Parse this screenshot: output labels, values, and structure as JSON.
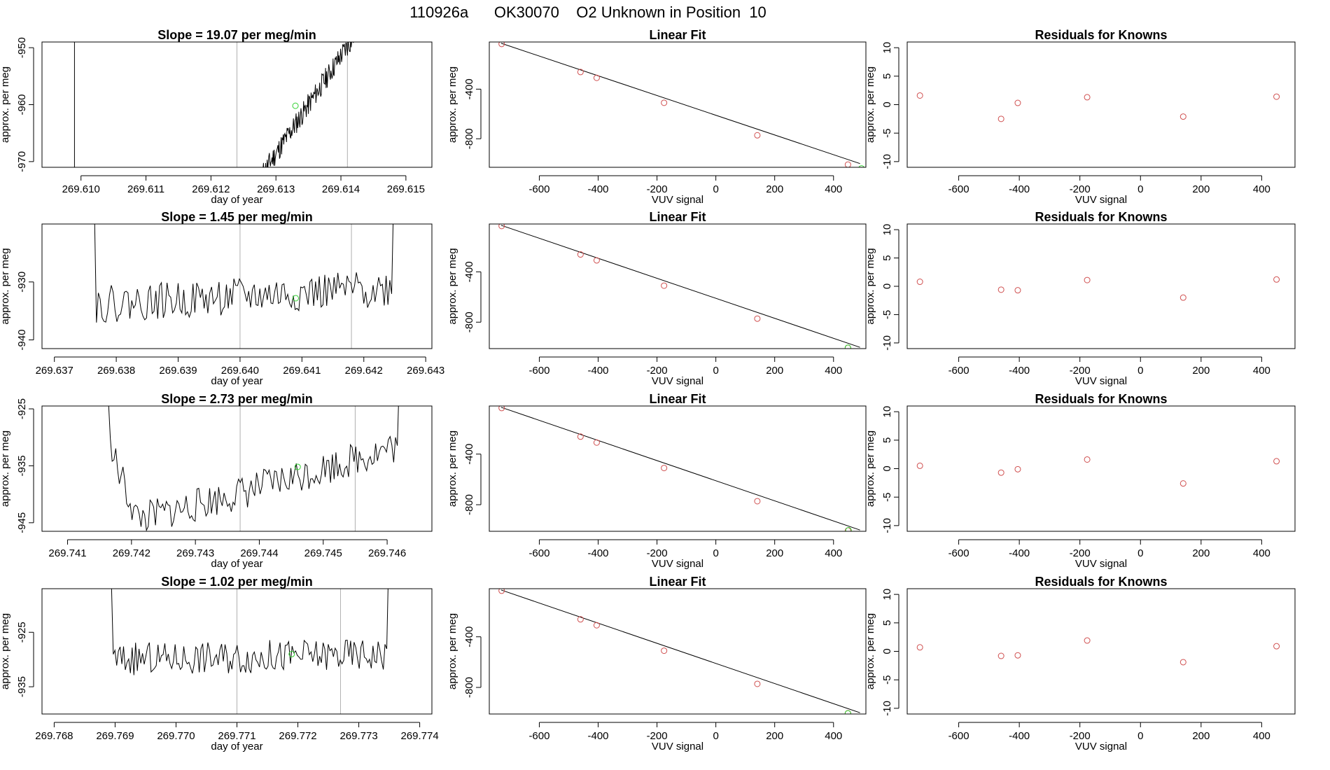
{
  "page_title": "110926a      OK30070    O2 Unknown in Position  10",
  "colors": {
    "known": "#d05050",
    "unknown": "#30d030",
    "trace": "#000000",
    "window": "#b0b0b0",
    "axis": "#000000"
  },
  "chart_data": [
    {
      "type": "line",
      "row": 0,
      "col": 0,
      "title": "Slope =  19.07  per meg/min",
      "xlabel": "day of year",
      "ylabel": "approx. per meg",
      "xlim": [
        269.6094,
        269.6154
      ],
      "ylim": [
        -971,
        -949
      ],
      "xticks": [
        "269.610",
        "269.611",
        "269.612",
        "269.613",
        "269.614",
        "269.615"
      ],
      "yticks": [
        "-950",
        "-960",
        "-970"
      ],
      "window_lines": [
        269.6124,
        269.6141
      ],
      "unknown_point": [
        269.6133,
        -960.2
      ],
      "trace": {
        "seed": 11,
        "x0": 269.6128,
        "x1": 269.6142,
        "y0": -972,
        "y1": -948,
        "mode": "ramp",
        "noise": 2.0
      }
    },
    {
      "type": "scatter",
      "row": 0,
      "col": 1,
      "title": "Linear Fit",
      "xlabel": "VUV signal",
      "ylabel": "approx. per meg",
      "xlim": [
        -770,
        510
      ],
      "ylim": [
        -1030,
        -20
      ],
      "xticks": [
        "-600",
        "-400",
        "-200",
        "0",
        "200",
        "400"
      ],
      "yticks": [
        "-400",
        "-800"
      ],
      "fit_line": [
        [
          -730,
          -30
        ],
        [
          490,
          -1000
        ]
      ],
      "known_points": [
        [
          -728,
          -36
        ],
        [
          -460,
          -262
        ],
        [
          -405,
          -309
        ],
        [
          -176,
          -510
        ],
        [
          141,
          -772
        ],
        [
          449,
          -1008
        ]
      ],
      "unknown_point": [
        495,
        -1039
      ]
    },
    {
      "type": "scatter",
      "row": 0,
      "col": 2,
      "title": "Residuals for Knowns",
      "xlabel": "VUV signal",
      "ylabel": "approx. per meg",
      "xlim": [
        -770,
        510
      ],
      "ylim": [
        -11,
        11
      ],
      "xticks": [
        "-600",
        "-400",
        "-200",
        "0",
        "200",
        "400"
      ],
      "yticks": [
        "10",
        "5",
        "0",
        "-5",
        "-10"
      ],
      "known_points": [
        [
          -728,
          1.6
        ],
        [
          -460,
          -2.5
        ],
        [
          -405,
          0.3
        ],
        [
          -176,
          1.3
        ],
        [
          141,
          -2.1
        ],
        [
          449,
          1.4
        ]
      ]
    },
    {
      "type": "line",
      "row": 1,
      "col": 0,
      "title": "Slope =  1.45  per meg/min",
      "xlabel": "day of year",
      "ylabel": "approx. per meg",
      "xlim": [
        269.6368,
        269.6431
      ],
      "ylim": [
        -941.5,
        -920
      ],
      "xticks": [
        "269.637",
        "269.638",
        "269.639",
        "269.640",
        "269.641",
        "269.642",
        "269.643"
      ],
      "yticks": [
        "-930",
        "-940"
      ],
      "window_lines": [
        269.64,
        269.6418
      ],
      "unknown_point": [
        269.6409,
        -932.8
      ],
      "trace": {
        "seed": 22,
        "x0": 269.6375,
        "x1": 269.6426,
        "y0": -934,
        "y1": -931,
        "mode": "noisy",
        "noise": 3.2,
        "spike": true
      }
    },
    {
      "type": "scatter",
      "row": 1,
      "col": 1,
      "title": "Linear Fit",
      "xlabel": "VUV signal",
      "ylabel": "approx. per meg",
      "xlim": [
        -770,
        510
      ],
      "ylim": [
        -1010,
        -20
      ],
      "xticks": [
        "-600",
        "-400",
        "-200",
        "0",
        "200",
        "400"
      ],
      "yticks": [
        "-400",
        "-800"
      ],
      "fit_line": [
        [
          -730,
          -30
        ],
        [
          490,
          -1000
        ]
      ],
      "known_points": [
        [
          -728,
          -36
        ],
        [
          -460,
          -262
        ],
        [
          -405,
          -309
        ],
        [
          -176,
          -510
        ],
        [
          141,
          -772
        ],
        [
          449,
          -1004
        ]
      ],
      "unknown_point": [
        449,
        -1003
      ]
    },
    {
      "type": "scatter",
      "row": 1,
      "col": 2,
      "title": "Residuals for Knowns",
      "xlabel": "VUV signal",
      "ylabel": "approx. per meg",
      "xlim": [
        -770,
        510
      ],
      "ylim": [
        -11,
        11
      ],
      "xticks": [
        "-600",
        "-400",
        "-200",
        "0",
        "200",
        "400"
      ],
      "yticks": [
        "10",
        "5",
        "0",
        "-5",
        "-10"
      ],
      "known_points": [
        [
          -728,
          0.8
        ],
        [
          -460,
          -0.6
        ],
        [
          -405,
          -0.7
        ],
        [
          -176,
          1.1
        ],
        [
          141,
          -2.0
        ],
        [
          449,
          1.2
        ]
      ]
    },
    {
      "type": "line",
      "row": 2,
      "col": 0,
      "title": "Slope =  2.73  per meg/min",
      "xlabel": "day of year",
      "ylabel": "approx. per meg",
      "xlim": [
        269.7406,
        269.7467
      ],
      "ylim": [
        -946.5,
        -924.5
      ],
      "xticks": [
        "269.741",
        "269.742",
        "269.743",
        "269.744",
        "269.745",
        "269.746"
      ],
      "yticks": [
        "-925",
        "-935",
        "-945"
      ],
      "window_lines": [
        269.7437,
        269.7455
      ],
      "unknown_point": [
        269.7446,
        -935.2
      ],
      "trace": {
        "seed": 33,
        "x0": 269.7415,
        "x1": 269.7463,
        "y0": -944,
        "y1": -931,
        "mode": "bowl",
        "noise": 3.0
      }
    },
    {
      "type": "scatter",
      "row": 2,
      "col": 1,
      "title": "Linear Fit",
      "xlabel": "VUV signal",
      "ylabel": "approx. per meg",
      "xlim": [
        -770,
        510
      ],
      "ylim": [
        -1010,
        -20
      ],
      "xticks": [
        "-600",
        "-400",
        "-200",
        "0",
        "200",
        "400"
      ],
      "yticks": [
        "-400",
        "-800"
      ],
      "fit_line": [
        [
          -730,
          -30
        ],
        [
          490,
          -1000
        ]
      ],
      "known_points": [
        [
          -728,
          -36
        ],
        [
          -460,
          -262
        ],
        [
          -405,
          -309
        ],
        [
          -176,
          -510
        ],
        [
          141,
          -772
        ],
        [
          449,
          -1004
        ]
      ],
      "unknown_point": [
        451,
        -1002
      ]
    },
    {
      "type": "scatter",
      "row": 2,
      "col": 2,
      "title": "Residuals for Knowns",
      "xlabel": "VUV signal",
      "ylabel": "approx. per meg",
      "xlim": [
        -770,
        510
      ],
      "ylim": [
        -11,
        11
      ],
      "xticks": [
        "-600",
        "-400",
        "-200",
        "0",
        "200",
        "400"
      ],
      "yticks": [
        "10",
        "5",
        "0",
        "-5",
        "-10"
      ],
      "known_points": [
        [
          -728,
          0.5
        ],
        [
          -460,
          -0.7
        ],
        [
          -405,
          -0.1
        ],
        [
          -176,
          1.6
        ],
        [
          141,
          -2.6
        ],
        [
          449,
          1.3
        ]
      ]
    },
    {
      "type": "line",
      "row": 3,
      "col": 0,
      "title": "Slope =  1.02  per meg/min",
      "xlabel": "day of year",
      "ylabel": "approx. per meg",
      "xlim": [
        269.7678,
        269.7742
      ],
      "ylim": [
        -940,
        -917
      ],
      "xticks": [
        "269.768",
        "269.769",
        "269.770",
        "269.771",
        "269.772",
        "269.773",
        "269.774"
      ],
      "yticks": [
        "-925",
        "-935"
      ],
      "window_lines": [
        269.771,
        269.7727
      ],
      "unknown_point": [
        269.7719,
        -929.0
      ],
      "trace": {
        "seed": 44,
        "x0": 269.7688,
        "x1": 269.7736,
        "y0": -930,
        "y1": -929,
        "mode": "noisy",
        "noise": 3.0,
        "spike": true
      }
    },
    {
      "type": "scatter",
      "row": 3,
      "col": 1,
      "title": "Linear Fit",
      "xlabel": "VUV signal",
      "ylabel": "approx. per meg",
      "xlim": [
        -770,
        510
      ],
      "ylim": [
        -1010,
        -20
      ],
      "xticks": [
        "-600",
        "-400",
        "-200",
        "0",
        "200",
        "400"
      ],
      "yticks": [
        "-400",
        "-800"
      ],
      "fit_line": [
        [
          -730,
          -30
        ],
        [
          490,
          -1000
        ]
      ],
      "known_points": [
        [
          -728,
          -36
        ],
        [
          -460,
          -262
        ],
        [
          -405,
          -309
        ],
        [
          -176,
          -510
        ],
        [
          141,
          -772
        ],
        [
          449,
          -1004
        ]
      ],
      "unknown_point": [
        449,
        -1005
      ]
    },
    {
      "type": "scatter",
      "row": 3,
      "col": 2,
      "title": "Residuals for Knowns",
      "xlabel": "VUV signal",
      "ylabel": "approx. per meg",
      "xlim": [
        -770,
        510
      ],
      "ylim": [
        -11,
        11
      ],
      "xticks": [
        "-600",
        "-400",
        "-200",
        "0",
        "200",
        "400"
      ],
      "yticks": [
        "10",
        "5",
        "0",
        "-5",
        "-10"
      ],
      "known_points": [
        [
          -728,
          0.7
        ],
        [
          -460,
          -0.8
        ],
        [
          -405,
          -0.7
        ],
        [
          -176,
          1.9
        ],
        [
          141,
          -1.9
        ],
        [
          449,
          0.9
        ]
      ]
    }
  ]
}
